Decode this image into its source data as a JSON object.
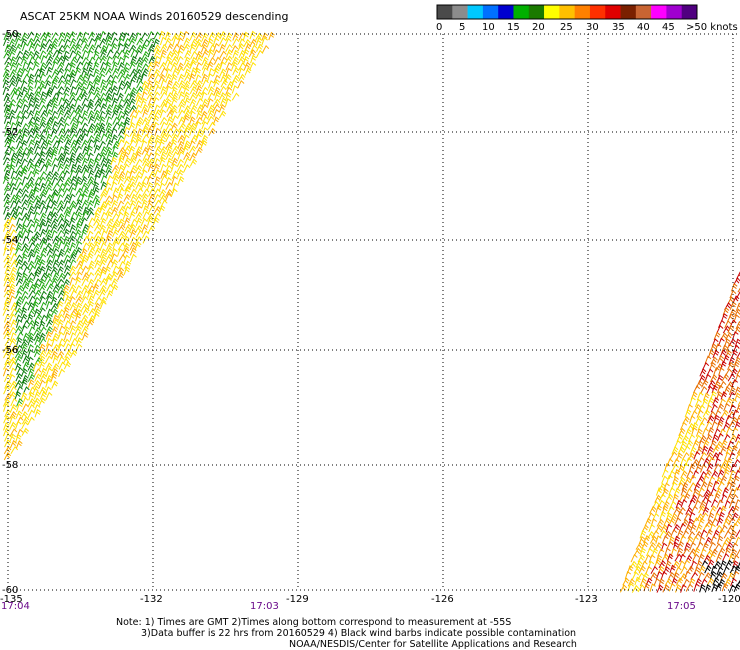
{
  "title": "ASCAT 25KM NOAA Winds 20160529 descending",
  "legend": {
    "labels": [
      "0",
      "5",
      "10",
      "15",
      "20",
      "25",
      "30",
      "35",
      "40",
      "45",
      ">50 knots"
    ],
    "colors": [
      "#4a4a4a",
      "#8c8c8c",
      "#00c8ff",
      "#0070ff",
      "#0000d0",
      "#00b000",
      "#1a7a00",
      "#ffff00",
      "#ffc000",
      "#ff8000",
      "#ff3000",
      "#e00000",
      "#7a2000",
      "#c86432",
      "#ff00ff",
      "#a000d0",
      "#500080"
    ]
  },
  "axes": {
    "x_ticks": [
      "-135",
      "-132",
      "-129",
      "-126",
      "-123",
      "-120"
    ],
    "y_ticks": [
      "-50",
      "-52",
      "-54",
      "-56",
      "-58",
      "-60"
    ]
  },
  "time_labels": [
    "17:04",
    "17:03",
    "17:05"
  ],
  "notes": [
    "Note: 1) Times are GMT 2)Times along bottom correspond to measurement at -55S",
    "3)Data buffer is 22 hrs from 20160529 4) Black wind barbs indicate possible contamination",
    "NOAA/NESDIS/Center for Satellite Applications and Research"
  ],
  "colors": {
    "grid": "#000000",
    "green_dark": "#0a7a0a",
    "green": "#22aa11",
    "yellow": "#ffe000",
    "yellow_orange": "#ffb000",
    "orange": "#e87000",
    "red": "#c80000",
    "time_label": "#6a0a8a"
  }
}
